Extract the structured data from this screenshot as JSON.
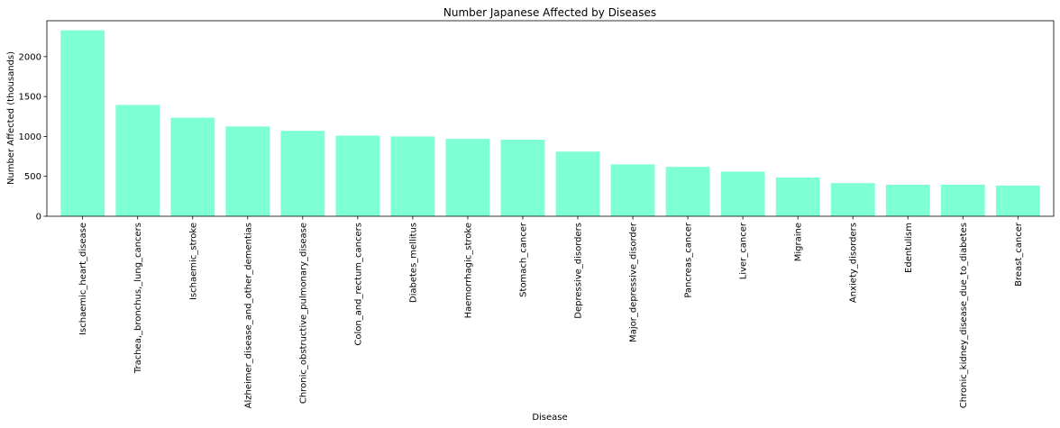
{
  "chart_data": {
    "type": "bar",
    "title": "Number Japanese Affected by Diseases",
    "xlabel": "Disease",
    "ylabel": "Number Affected (thousands)",
    "categories": [
      "Ischaemic_heart_disease",
      "Trachea,_bronchus,_lung_cancers",
      "Ischaemic_stroke",
      "Alzheimer_disease_and_other_dementias",
      "Chronic_obstructive_pulmonary_disease",
      "Colon_and_rectum_cancers",
      "Diabetes_mellitus",
      "Haemorrhagic_stroke",
      "Stomach_cancer",
      "Depressive_disorders",
      "Major_depressive_disorder",
      "Pancreas_cancer",
      "Liver_cancer",
      "Migraine",
      "Anxiety_disorders",
      "Edentulism",
      "Chronic_kidney_disease_due_to_diabetes",
      "Breast_cancer"
    ],
    "values": [
      2330,
      1395,
      1235,
      1125,
      1070,
      1010,
      1000,
      970,
      960,
      810,
      650,
      620,
      560,
      485,
      415,
      395,
      395,
      385
    ],
    "ylim": [
      0,
      2450
    ],
    "yticks": [
      0,
      500,
      1000,
      1500,
      2000
    ],
    "bar_color": "#7fffd4",
    "grid": false
  }
}
